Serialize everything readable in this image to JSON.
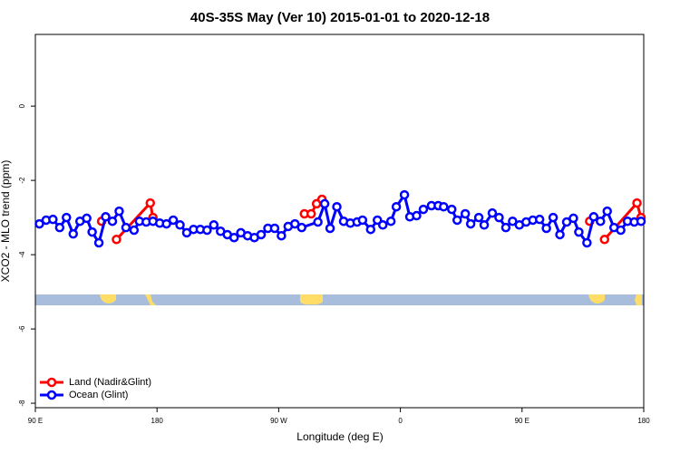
{
  "chart_data": {
    "type": "line",
    "title": "40S-35S May (Ver 10)   2015-01-01 to 2020-12-18",
    "x_label": "Longitude (deg E)",
    "y_label": "XCO2 - MLO trend (ppm)",
    "xlim": [
      90,
      540
    ],
    "ylim": [
      -8.12,
      1.93
    ],
    "xticks": [
      {
        "value": 90,
        "label": "90 E"
      },
      {
        "value": 180,
        "label": "180"
      },
      {
        "value": 270,
        "label": "90 W"
      },
      {
        "value": 360,
        "label": "0"
      },
      {
        "value": 450,
        "label": "90 E"
      },
      {
        "value": 540,
        "label": "180"
      }
    ],
    "yticks": [
      0,
      -2,
      -4,
      -6,
      -8
    ],
    "legend_position": "bottom-left",
    "series": [
      {
        "name": "Land (Nadir&Glint)",
        "color": "#ff0000",
        "x": [
          139,
          null,
          150,
          175,
          177,
          null,
          289,
          294,
          298,
          302,
          null,
          500,
          null,
          511,
          535,
          538
        ],
        "values": [
          -3.1,
          null,
          -3.59,
          -2.61,
          -3.0,
          null,
          -2.9,
          -2.9,
          -2.63,
          -2.51,
          null,
          -3.1,
          null,
          -3.59,
          -2.61,
          -3.0
        ]
      },
      {
        "name": "Ocean (Glint)",
        "color": "#0000ff",
        "x": [
          93,
          98,
          103,
          108,
          113,
          118,
          123,
          128,
          132,
          137,
          142,
          147,
          152,
          157,
          163,
          167,
          172,
          177,
          182,
          187,
          192,
          197,
          202,
          207,
          212,
          217,
          222,
          227,
          232,
          237,
          242,
          247,
          252,
          257,
          262,
          267,
          272,
          277,
          282,
          287,
          299,
          304,
          308,
          313,
          318,
          323,
          328,
          332,
          338,
          343,
          347,
          353,
          357,
          363,
          367,
          372,
          377,
          383,
          388,
          392,
          398,
          402,
          408,
          412,
          418,
          422,
          428,
          433,
          438,
          443,
          448,
          453,
          458,
          463,
          468,
          473,
          478,
          483,
          488,
          492,
          498,
          503,
          508,
          513,
          518,
          523,
          528,
          533,
          538
        ],
        "values": [
          -3.17,
          -3.07,
          -3.05,
          -3.27,
          -3.0,
          -3.44,
          -3.1,
          -3.02,
          -3.39,
          -3.68,
          -2.98,
          -3.1,
          -2.83,
          -3.27,
          -3.34,
          -3.1,
          -3.12,
          -3.1,
          -3.15,
          -3.17,
          -3.07,
          -3.2,
          -3.41,
          -3.32,
          -3.32,
          -3.34,
          -3.2,
          -3.37,
          -3.46,
          -3.54,
          -3.41,
          -3.49,
          -3.54,
          -3.46,
          -3.29,
          -3.29,
          -3.49,
          -3.24,
          -3.17,
          -3.27,
          -3.12,
          -2.63,
          -3.29,
          -2.71,
          -3.1,
          -3.15,
          -3.12,
          -3.07,
          -3.32,
          -3.07,
          -3.2,
          -3.1,
          -2.71,
          -2.39,
          -2.98,
          -2.95,
          -2.78,
          -2.68,
          -2.68,
          -2.71,
          -2.78,
          -3.07,
          -2.9,
          -3.17,
          -3.0,
          -3.2,
          -2.88,
          -3.0,
          -3.27,
          -3.1,
          -3.2,
          -3.12,
          -3.07,
          -3.05,
          -3.29,
          -3.0,
          -3.46,
          -3.12,
          -3.02,
          -3.39,
          -3.68,
          -2.98,
          -3.1,
          -2.83,
          -3.27,
          -3.34,
          -3.1,
          -3.12,
          -3.1
        ]
      }
    ]
  }
}
